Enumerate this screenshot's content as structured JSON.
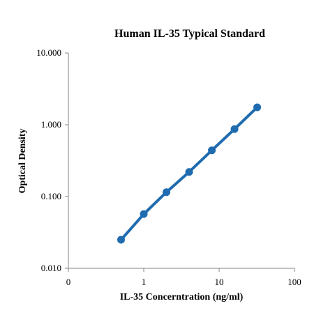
{
  "chart_data": {
    "type": "line",
    "title": "Human IL-35 Typical Standard",
    "xlabel": "IL-35 Concerntration (ng/ml)",
    "ylabel": "Optical Density",
    "x_scale": "log",
    "y_scale": "log",
    "xlim": [
      0.1,
      100
    ],
    "ylim": [
      0.01,
      10
    ],
    "x_ticks": [
      0.1,
      1,
      10,
      100
    ],
    "x_tick_labels": [
      "0",
      "1",
      "10",
      "100"
    ],
    "y_ticks": [
      0.01,
      0.1,
      1,
      10
    ],
    "y_tick_labels": [
      "0.010",
      "0.100",
      "1.000",
      "10.000"
    ],
    "grid": false,
    "legend": "none",
    "series": [
      {
        "color": "#1F6BB0",
        "x": [
          0.5,
          1,
          2,
          4,
          8,
          16,
          32
        ],
        "y": [
          0.025,
          0.057,
          0.115,
          0.22,
          0.44,
          0.87,
          1.75
        ]
      }
    ]
  }
}
